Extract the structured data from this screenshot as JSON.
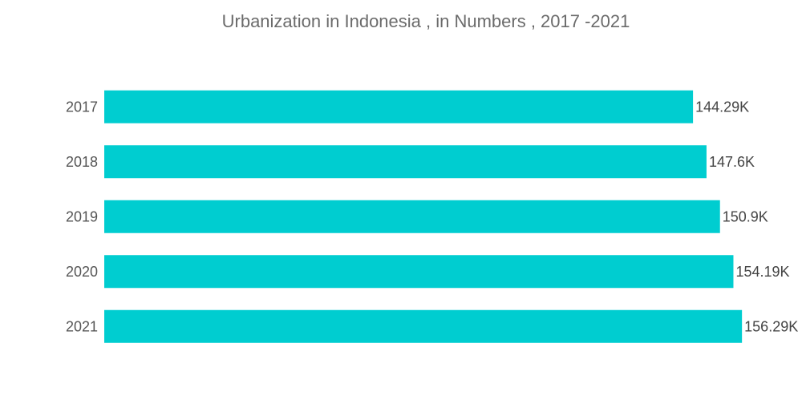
{
  "chart_data": {
    "type": "bar",
    "orientation": "horizontal",
    "title": "Urbanization in Indonesia , in Numbers , 2017 -2021",
    "categories": [
      "2017",
      "2018",
      "2019",
      "2020",
      "2021"
    ],
    "values": [
      144.29,
      147.6,
      150.9,
      154.19,
      156.29
    ],
    "data_labels": [
      "144.29K",
      "147.6K",
      "150.9K",
      "154.19K",
      "156.29K"
    ],
    "xlim": [
      0,
      171
    ],
    "grid": false,
    "legend": "none",
    "bar_color": "#00cdd0"
  }
}
